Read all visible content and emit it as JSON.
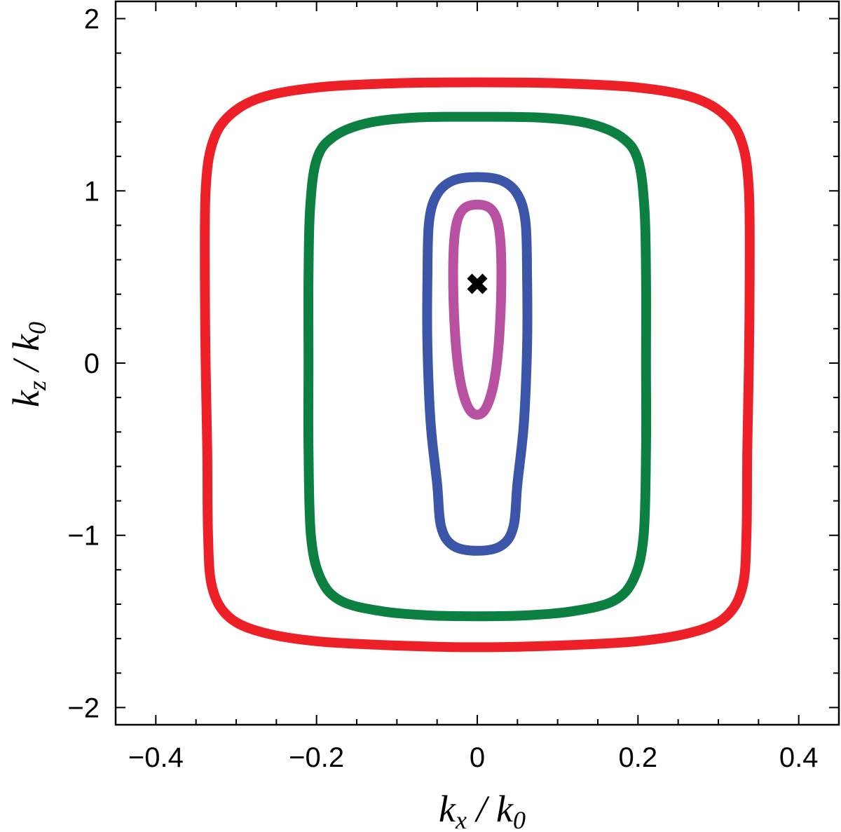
{
  "chart_data": {
    "type": "line",
    "xlabel_parts": {
      "main": "k",
      "sub": "x",
      "rest": " / k",
      "sub2": "0"
    },
    "ylabel_parts": {
      "main": "k",
      "sub": "z",
      "rest": " / k",
      "sub2": "0"
    },
    "xlim": [
      -0.45,
      0.45
    ],
    "ylim": [
      -2.1,
      2.1
    ],
    "x_ticks": [
      {
        "value": -0.4,
        "label": "−0.4"
      },
      {
        "value": -0.2,
        "label": "−0.2"
      },
      {
        "value": 0,
        "label": "0"
      },
      {
        "value": 0.2,
        "label": "0.2"
      },
      {
        "value": 0.4,
        "label": "0.4"
      }
    ],
    "x_minor_step": 0.05,
    "y_ticks": [
      {
        "value": -2,
        "label": "−2"
      },
      {
        "value": -1,
        "label": "−1"
      },
      {
        "value": 0,
        "label": "0"
      },
      {
        "value": 1,
        "label": "1"
      },
      {
        "value": 2,
        "label": "2"
      }
    ],
    "y_minor_step": 0.2,
    "grid": false,
    "series": [
      {
        "color": "#ee2027",
        "points": [
          [
            0,
            1.63
          ],
          [
            0.1,
            1.625
          ],
          [
            0.2,
            1.6
          ],
          [
            0.27,
            1.54
          ],
          [
            0.31,
            1.43
          ],
          [
            0.33,
            1.27
          ],
          [
            0.338,
            1.0
          ],
          [
            0.339,
            0.5
          ],
          [
            0.338,
            0
          ],
          [
            0.336,
            -0.5
          ],
          [
            0.335,
            -1.0
          ],
          [
            0.33,
            -1.3
          ],
          [
            0.31,
            -1.47
          ],
          [
            0.27,
            -1.56
          ],
          [
            0.2,
            -1.615
          ],
          [
            0.1,
            -1.64
          ],
          [
            0,
            -1.65
          ],
          [
            -0.1,
            -1.64
          ],
          [
            -0.2,
            -1.615
          ],
          [
            -0.27,
            -1.56
          ],
          [
            -0.31,
            -1.47
          ],
          [
            -0.33,
            -1.3
          ],
          [
            -0.335,
            -1.0
          ],
          [
            -0.336,
            -0.5
          ],
          [
            -0.338,
            0
          ],
          [
            -0.339,
            0.5
          ],
          [
            -0.338,
            1.0
          ],
          [
            -0.33,
            1.27
          ],
          [
            -0.31,
            1.43
          ],
          [
            -0.27,
            1.54
          ],
          [
            -0.2,
            1.6
          ],
          [
            -0.1,
            1.625
          ]
        ]
      },
      {
        "color": "#0b8040",
        "points": [
          [
            0,
            1.43
          ],
          [
            0.08,
            1.425
          ],
          [
            0.14,
            1.39
          ],
          [
            0.18,
            1.31
          ],
          [
            0.2,
            1.18
          ],
          [
            0.208,
            0.9
          ],
          [
            0.21,
            0.5
          ],
          [
            0.21,
            0
          ],
          [
            0.21,
            -0.5
          ],
          [
            0.207,
            -1.0
          ],
          [
            0.195,
            -1.25
          ],
          [
            0.17,
            -1.38
          ],
          [
            0.12,
            -1.44
          ],
          [
            0.06,
            -1.465
          ],
          [
            0,
            -1.47
          ],
          [
            -0.06,
            -1.465
          ],
          [
            -0.12,
            -1.44
          ],
          [
            -0.17,
            -1.38
          ],
          [
            -0.195,
            -1.25
          ],
          [
            -0.207,
            -1.0
          ],
          [
            -0.21,
            -0.5
          ],
          [
            -0.21,
            0
          ],
          [
            -0.21,
            0.5
          ],
          [
            -0.208,
            0.9
          ],
          [
            -0.2,
            1.18
          ],
          [
            -0.18,
            1.31
          ],
          [
            -0.14,
            1.39
          ],
          [
            -0.08,
            1.425
          ]
        ]
      },
      {
        "color": "#3b55a8",
        "points": [
          [
            0,
            1.08
          ],
          [
            0.03,
            1.06
          ],
          [
            0.05,
            0.98
          ],
          [
            0.06,
            0.82
          ],
          [
            0.062,
            0.5
          ],
          [
            0.062,
            0.1
          ],
          [
            0.058,
            -0.35
          ],
          [
            0.05,
            -0.7
          ],
          [
            0.045,
            -0.95
          ],
          [
            0.03,
            -1.06
          ],
          [
            0,
            -1.09
          ],
          [
            -0.03,
            -1.06
          ],
          [
            -0.045,
            -0.95
          ],
          [
            -0.05,
            -0.7
          ],
          [
            -0.058,
            -0.35
          ],
          [
            -0.062,
            0.1
          ],
          [
            -0.062,
            0.5
          ],
          [
            -0.06,
            0.82
          ],
          [
            -0.05,
            0.98
          ],
          [
            -0.03,
            1.06
          ]
        ]
      },
      {
        "color": "#b951a3",
        "points": [
          [
            0,
            0.92
          ],
          [
            0.018,
            0.89
          ],
          [
            0.027,
            0.78
          ],
          [
            0.03,
            0.55
          ],
          [
            0.028,
            0.2
          ],
          [
            0.022,
            -0.08
          ],
          [
            0.012,
            -0.25
          ],
          [
            0,
            -0.3
          ],
          [
            -0.012,
            -0.25
          ],
          [
            -0.022,
            -0.08
          ],
          [
            -0.028,
            0.2
          ],
          [
            -0.03,
            0.55
          ],
          [
            -0.027,
            0.78
          ],
          [
            -0.018,
            0.89
          ]
        ]
      }
    ],
    "marker": {
      "x": 0,
      "y": 0.46,
      "symbol": "x",
      "color": "#000000"
    }
  }
}
